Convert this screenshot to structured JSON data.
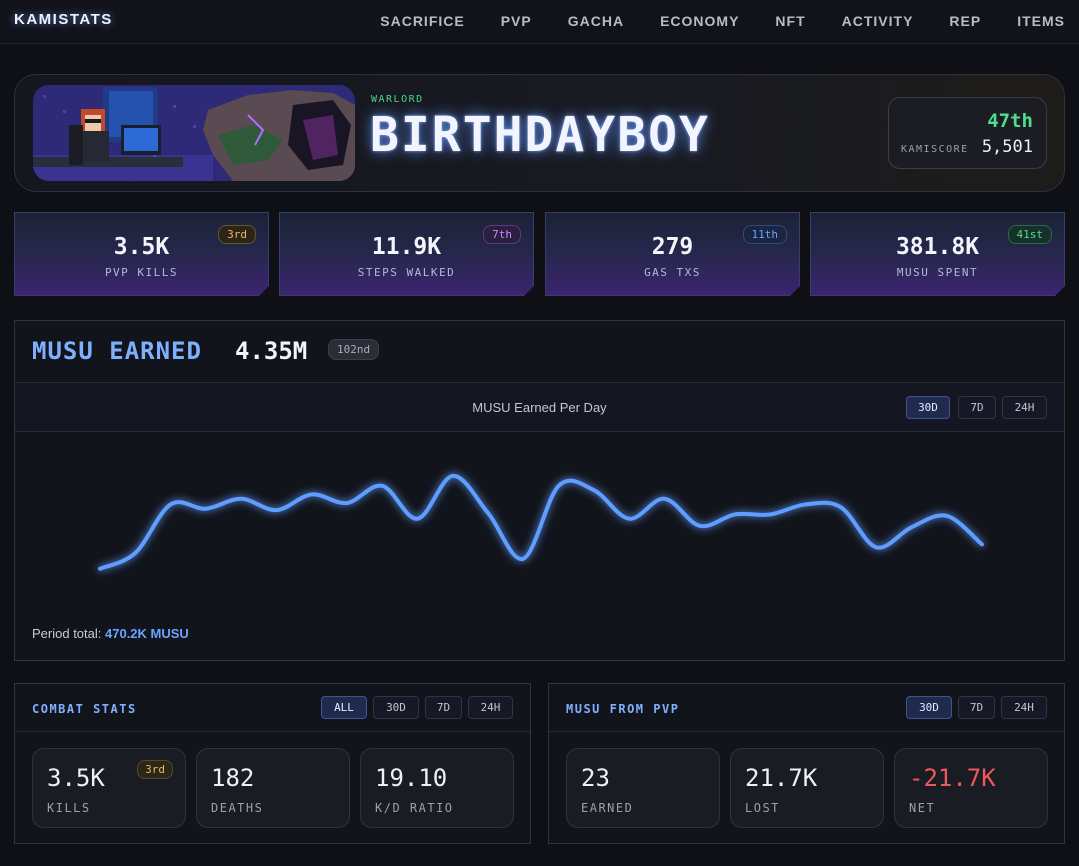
{
  "nav": {
    "brand": "KAMISTATS",
    "links": [
      "SACRIFICE",
      "PVP",
      "GACHA",
      "ECONOMY",
      "NFT",
      "ACTIVITY",
      "REP",
      "ITEMS"
    ]
  },
  "hero": {
    "rank_title": "WARLORD",
    "player_name": "BIRTHDAYBOY",
    "score_rank": "47th",
    "score_label": "KAMISCORE",
    "score_value": "5,501"
  },
  "stats": [
    {
      "value": "3.5K",
      "label": "PVP KILLS",
      "badge": "3rd",
      "badge_color": "#f2b94a"
    },
    {
      "value": "11.9K",
      "label": "STEPS WALKED",
      "badge": "7th",
      "badge_color": "#c58cff"
    },
    {
      "value": "279",
      "label": "GAS TXS",
      "badge": "11th",
      "badge_color": "#6aa3ff"
    },
    {
      "value": "381.8K",
      "label": "MUSU SPENT",
      "badge": "41st",
      "badge_color": "#4fdc8e"
    }
  ],
  "chart_panel": {
    "title": "MUSU EARNED",
    "total": "4.35M",
    "rank": "102nd",
    "subtitle": "MUSU Earned Per Day",
    "ranges": [
      "30D",
      "7D",
      "24H"
    ],
    "active_range": "30D",
    "period_label": "Period total:",
    "period_value": "470.2K MUSU"
  },
  "chart_data": {
    "type": "line",
    "title": "MUSU Earned Per Day",
    "xlabel": "",
    "ylabel": "",
    "grid": false,
    "line_color": "#5f9dff",
    "series": [
      {
        "values": [
          3,
          14,
          48,
          45,
          52,
          44,
          55,
          49,
          61,
          38,
          68,
          42,
          10,
          61,
          58,
          38,
          52,
          33,
          41,
          41,
          48,
          46,
          18,
          32,
          40,
          20
        ]
      }
    ]
  },
  "combat": {
    "title": "COMBAT STATS",
    "ranges": [
      "ALL",
      "30D",
      "7D",
      "24H"
    ],
    "active_range": "ALL",
    "cards": [
      {
        "value": "3.5K",
        "label": "KILLS",
        "badge": "3rd"
      },
      {
        "value": "182",
        "label": "DEATHS"
      },
      {
        "value": "19.10",
        "label": "K/D RATIO"
      }
    ]
  },
  "pvp_musu": {
    "title": "MUSU FROM PVP",
    "ranges": [
      "30D",
      "7D",
      "24H"
    ],
    "active_range": "30D",
    "cards": [
      {
        "value": "23",
        "label": "EARNED",
        "color": "#eef0f6"
      },
      {
        "value": "21.7K",
        "label": "LOST",
        "color": "#eef0f6"
      },
      {
        "value": "-21.7K",
        "label": "NET",
        "color": "#f0575a"
      }
    ]
  }
}
